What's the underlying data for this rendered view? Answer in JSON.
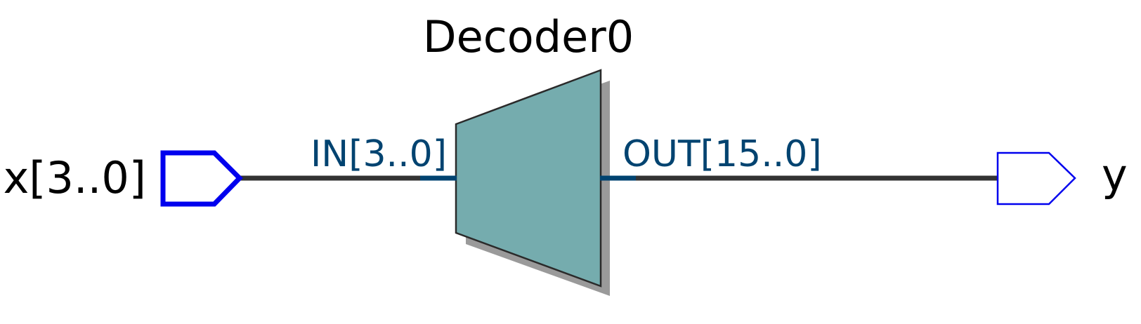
{
  "diagram": {
    "block": {
      "title": "Decoder0",
      "fill_color": "#75acae",
      "shadow_color": "#9a9a9a",
      "outline_color": "#2a2a2a"
    },
    "input_port": {
      "name": "x[3..0]",
      "color": "#0000ee"
    },
    "output_port": {
      "name": "y",
      "color": "#0000ee"
    },
    "pins": {
      "input_pin": "IN[3..0]",
      "output_pin": "OUT[15..0]",
      "pin_color": "#004370"
    },
    "wire_color": "#333333"
  }
}
